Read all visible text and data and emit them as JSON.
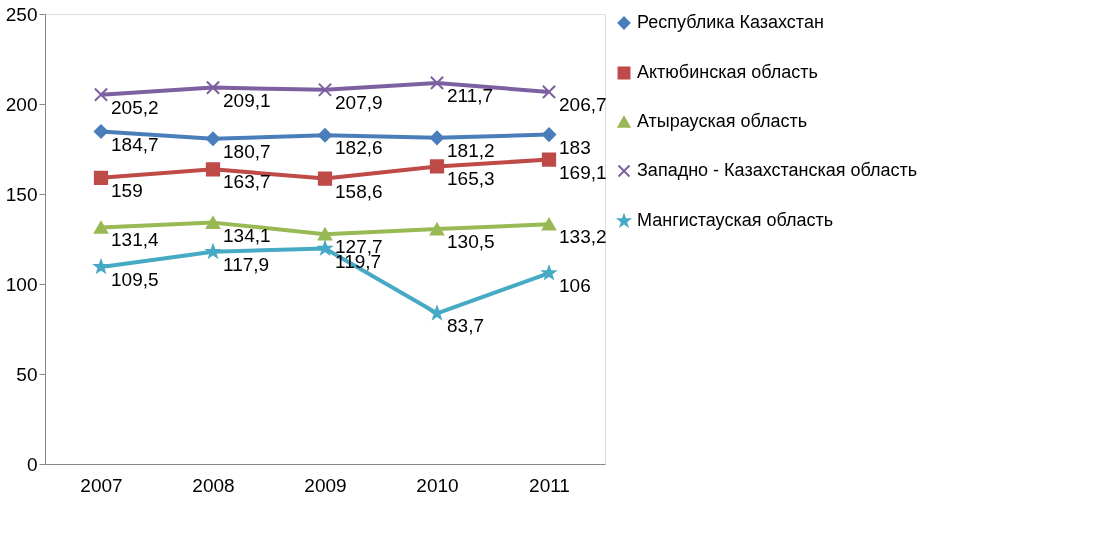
{
  "chart_data": {
    "type": "line",
    "categories": [
      "2007",
      "2008",
      "2009",
      "2010",
      "2011"
    ],
    "ylim": [
      0,
      250
    ],
    "yticks": [
      0,
      50,
      100,
      150,
      200,
      250
    ],
    "legend": "right",
    "line_style": "solid",
    "series": [
      {
        "name": "Республика Казахстан",
        "color": "#4a7ebb",
        "marker": "diamond",
        "values": [
          184.7,
          180.7,
          182.6,
          181.2,
          183
        ],
        "value_labels": [
          "184,7",
          "180,7",
          "182,6",
          "181,2",
          "183"
        ]
      },
      {
        "name": "Актюбинская область",
        "color": "#be4b48",
        "marker": "square",
        "values": [
          159,
          163.7,
          158.6,
          165.3,
          169.1
        ],
        "value_labels": [
          "159",
          "163,7",
          "158,6",
          "165,3",
          "169,1"
        ]
      },
      {
        "name": "Атырауская область",
        "color": "#98b954",
        "marker": "triangle",
        "values": [
          131.4,
          134.1,
          127.7,
          130.5,
          133.2
        ],
        "value_labels": [
          "131,4",
          "134,1",
          "127,7",
          "130,5",
          "133,2"
        ]
      },
      {
        "name": "Западно - Казахстанская область",
        "color": "#7d60a0",
        "marker": "cross",
        "values": [
          205.2,
          209.1,
          207.9,
          211.7,
          206.7
        ],
        "value_labels": [
          "205,2",
          "209,1",
          "207,9",
          "211,7",
          "206,7"
        ]
      },
      {
        "name": "Мангистауская область",
        "color": "#46aac5",
        "marker": "star",
        "values": [
          109.5,
          117.9,
          119.7,
          83.7,
          106
        ],
        "value_labels": [
          "109,5",
          "117,9",
          "119,7",
          "83,7",
          "106"
        ]
      }
    ]
  }
}
